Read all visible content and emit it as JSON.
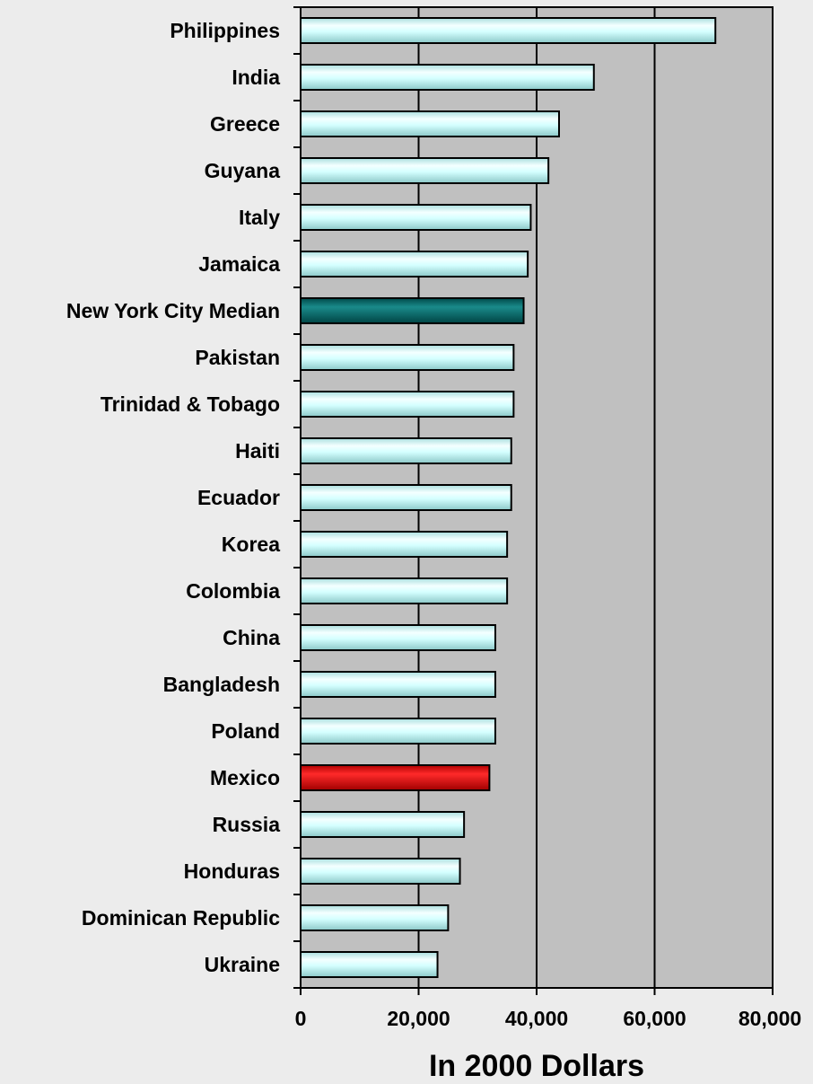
{
  "chart_data": {
    "type": "bar",
    "orientation": "horizontal",
    "categories": [
      "Philippines",
      "India",
      "Greece",
      "Guyana",
      "Italy",
      "Jamaica",
      "New York City Median",
      "Pakistan",
      "Trinidad & Tobago",
      "Haiti",
      "Ecuador",
      "Korea",
      "Colombia",
      "China",
      "Bangladesh",
      "Poland",
      "Mexico",
      "Russia",
      "Honduras",
      "Dominican Republic",
      "Ukraine"
    ],
    "values": [
      70300,
      49700,
      43800,
      42000,
      39000,
      38500,
      37800,
      36100,
      36100,
      35700,
      35700,
      35000,
      35000,
      33000,
      33000,
      33000,
      32000,
      27700,
      27000,
      25000,
      23200
    ],
    "highlights": {
      "New York City Median": "#006666",
      "Mexico": "#ff0000"
    },
    "bar_color": "#ccffff",
    "plot_background": "#c0c0c0",
    "xlim": [
      0,
      80000
    ],
    "xticks": [
      0,
      20000,
      40000,
      60000,
      80000
    ],
    "xtick_labels": [
      "0",
      "20,000",
      "40,000",
      "60,000",
      "80,000"
    ],
    "grid": "vertical",
    "xlabel": "In 2000 Dollars",
    "ylabel": "",
    "title": ""
  }
}
